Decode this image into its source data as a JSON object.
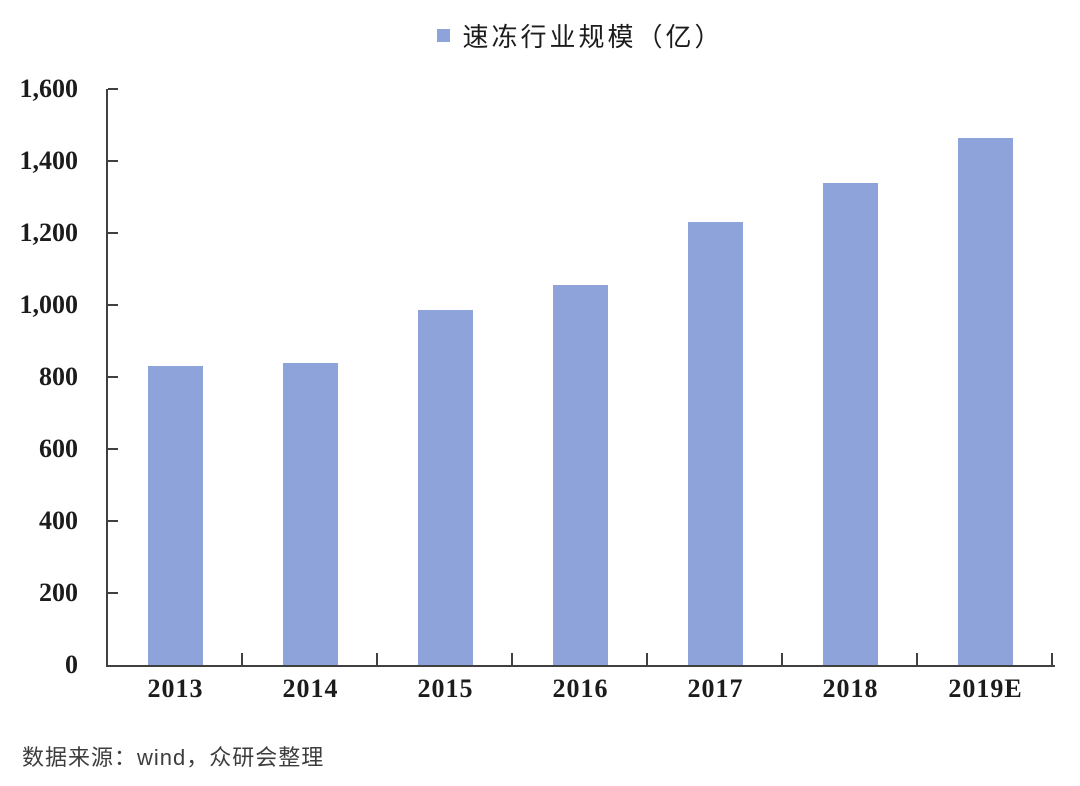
{
  "legend": {
    "label": "速冻行业规模（亿）"
  },
  "source_note": "数据来源：wind，众研会整理",
  "colors": {
    "bar": "#8DA3DA",
    "axis": "#404040",
    "text": "#1c1c1c",
    "source_text": "#3d3d3d"
  },
  "chart_data": {
    "type": "bar",
    "title": "速冻行业规模（亿）",
    "categories": [
      "2013",
      "2014",
      "2015",
      "2016",
      "2017",
      "2018",
      "2019E"
    ],
    "values": [
      830,
      840,
      985,
      1055,
      1230,
      1340,
      1465
    ],
    "series": [
      {
        "name": "速冻行业规模（亿）",
        "values": [
          830,
          840,
          985,
          1055,
          1230,
          1340,
          1465
        ]
      }
    ],
    "xlabel": "",
    "ylabel": "",
    "ylim": [
      0,
      1600
    ],
    "ytick_interval": 200,
    "ytick_labels": [
      "0",
      "200",
      "400",
      "600",
      "800",
      "1,000",
      "1,200",
      "1,400",
      "1,600"
    ],
    "legend_position": "top-center",
    "grid": false
  }
}
